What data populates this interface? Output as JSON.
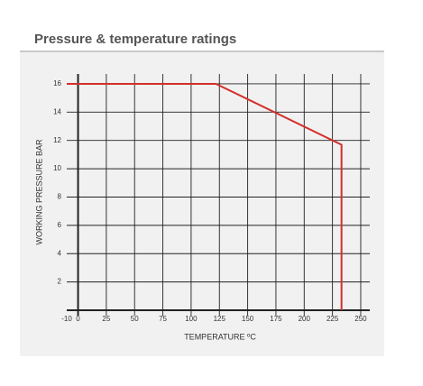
{
  "chart_data": {
    "type": "line",
    "title": "Pressure & temperature ratings",
    "x_label": "TEMPERATURE ºC",
    "y_label": "WORKING PRESSURE BAR",
    "x": [
      -10,
      122,
      233,
      233
    ],
    "series": [
      {
        "color": "#d2302c",
        "values": [
          16,
          16,
          11.7,
          0
        ]
      }
    ],
    "xlim": [
      -10,
      258
    ],
    "xticks": [
      -10,
      0,
      25,
      50,
      75,
      100,
      125,
      150,
      175,
      200,
      225,
      250
    ],
    "ylim": [
      0,
      16.7
    ],
    "yticks": [
      2,
      4,
      6,
      8,
      10,
      12,
      14,
      16
    ],
    "grid": true
  }
}
